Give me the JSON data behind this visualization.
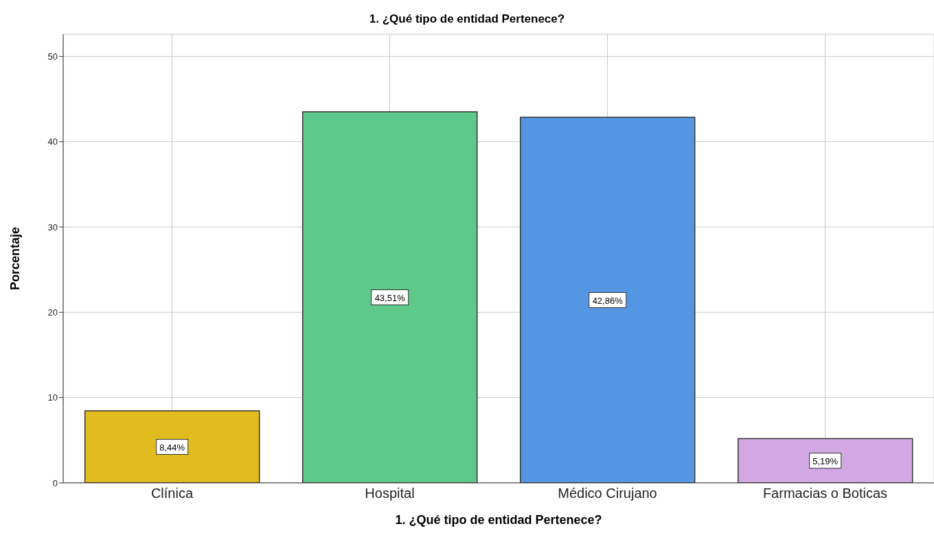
{
  "chart_data": {
    "type": "bar",
    "title": "1. ¿Qué tipo de entidad Pertenece?",
    "xlabel": "1. ¿Qué tipo de entidad Pertenece?",
    "ylabel": "Porcentaje",
    "categories": [
      "Clínica",
      "Hospital",
      "Médico Cirujano",
      "Farmacias o Boticas"
    ],
    "values": [
      8.44,
      43.51,
      42.86,
      5.19
    ],
    "colors": [
      "#e1bc1f",
      "#5ec98a",
      "#5596e3",
      "#d1a8e3"
    ],
    "value_labels": [
      "8,44%",
      "43,51%",
      "42,86%",
      "5,19%"
    ],
    "ylim": [
      0,
      52.6
    ],
    "yticks": [
      0,
      10,
      20,
      30,
      40,
      50
    ],
    "grid": true
  }
}
